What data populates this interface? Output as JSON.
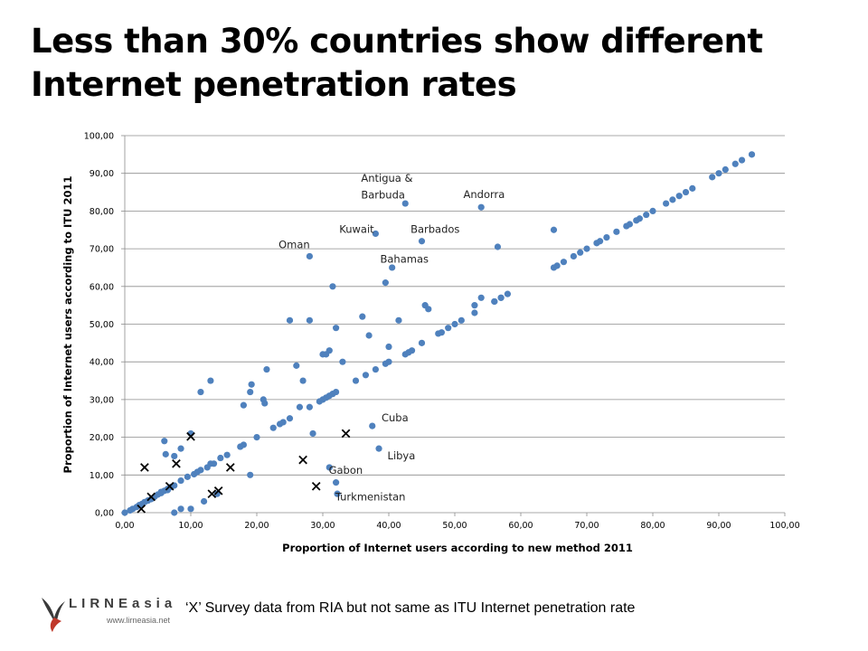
{
  "slide": {
    "title_line1": "Less than 30% countries show different",
    "title_line2": "Internet penetration rates",
    "footnote": "‘X’ Survey data from RIA but not same as ITU Internet penetration rate",
    "logo_word": "LIRNEasia",
    "logo_url": "www.lirneasia.net"
  },
  "colors": {
    "dot": "#4f81bd",
    "marker": "#000000",
    "grid": "#8c8c8c",
    "axis_text": "#000000"
  },
  "chart_data": {
    "type": "scatter",
    "title": "",
    "xlabel": "Proportion of Internet users according to new method 2011",
    "ylabel": "Proportion of Internet users according to ITU 2011",
    "xlim": [
      0,
      100
    ],
    "ylim": [
      0,
      100
    ],
    "x_ticks": [
      "0,00",
      "10,00",
      "20,00",
      "30,00",
      "40,00",
      "50,00",
      "60,00",
      "70,00",
      "80,00",
      "90,00",
      "100,00"
    ],
    "y_ticks": [
      "0,00",
      "10,00",
      "20,00",
      "30,00",
      "40,00",
      "50,00",
      "60,00",
      "70,00",
      "80,00",
      "90,00",
      "100,00"
    ],
    "grid": "horizontal",
    "series": [
      {
        "marker": "dot",
        "points": [
          [
            0,
            0
          ],
          [
            0.8,
            0.6
          ],
          [
            1.2,
            1
          ],
          [
            1.8,
            1.5
          ],
          [
            2.2,
            2
          ],
          [
            2.6,
            2.3
          ],
          [
            3,
            2.8
          ],
          [
            3.5,
            3.2
          ],
          [
            4,
            3.6
          ],
          [
            4.5,
            4.2
          ],
          [
            5,
            4.8
          ],
          [
            5.5,
            5.2
          ],
          [
            6,
            5.8
          ],
          [
            6.5,
            6.3
          ],
          [
            7,
            6.8
          ],
          [
            7.5,
            7.2
          ],
          [
            8.5,
            8.5
          ],
          [
            9.5,
            9.5
          ],
          [
            10.5,
            10.2
          ],
          [
            11,
            10.8
          ],
          [
            11.5,
            11.3
          ],
          [
            12.5,
            12
          ],
          [
            13,
            13
          ],
          [
            14.5,
            14.5
          ],
          [
            15.5,
            15.3
          ],
          [
            17.5,
            17.5
          ],
          [
            18,
            18
          ],
          [
            20,
            20
          ],
          [
            22.5,
            22.5
          ],
          [
            23.5,
            23.5
          ],
          [
            24,
            24
          ],
          [
            25,
            25
          ],
          [
            29.5,
            29.5
          ],
          [
            30,
            30
          ],
          [
            30.5,
            30.5
          ],
          [
            31,
            31
          ],
          [
            31.5,
            31.5
          ],
          [
            32,
            32
          ],
          [
            35,
            35
          ],
          [
            36.5,
            36.5
          ],
          [
            38,
            38
          ],
          [
            39.5,
            39.5
          ],
          [
            40,
            40
          ],
          [
            42.5,
            42
          ],
          [
            43,
            42.5
          ],
          [
            43.5,
            43
          ],
          [
            45,
            45
          ],
          [
            47.5,
            47.5
          ],
          [
            48,
            47.8
          ],
          [
            49,
            49
          ],
          [
            50,
            50
          ],
          [
            51,
            51
          ],
          [
            53,
            53
          ],
          [
            56,
            56
          ],
          [
            57,
            57
          ],
          [
            58,
            58
          ],
          [
            65,
            65
          ],
          [
            66.5,
            66.5
          ],
          [
            68,
            68
          ],
          [
            69,
            69
          ],
          [
            70,
            70
          ],
          [
            71.5,
            71.5
          ],
          [
            72,
            72
          ],
          [
            73,
            73
          ],
          [
            74.5,
            74.5
          ],
          [
            76,
            76
          ],
          [
            76.5,
            76.5
          ],
          [
            77.5,
            77.5
          ],
          [
            78,
            78
          ],
          [
            79,
            79
          ],
          [
            80,
            80
          ],
          [
            82,
            82
          ],
          [
            83,
            83
          ],
          [
            84,
            84
          ],
          [
            85,
            85
          ],
          [
            86,
            86
          ],
          [
            89,
            89
          ],
          [
            90,
            90
          ],
          [
            91,
            91
          ],
          [
            92.5,
            92.5
          ],
          [
            93.5,
            93.5
          ],
          [
            95,
            95
          ],
          [
            6,
            19
          ],
          [
            6.2,
            15.5
          ],
          [
            7.5,
            15
          ],
          [
            8.5,
            17
          ],
          [
            10,
            21
          ],
          [
            11.5,
            32
          ],
          [
            13,
            35
          ],
          [
            13.5,
            13
          ],
          [
            18,
            28.5
          ],
          [
            19,
            32
          ],
          [
            19.2,
            34
          ],
          [
            21,
            30
          ],
          [
            21.2,
            29
          ],
          [
            21.5,
            38
          ],
          [
            19,
            10
          ],
          [
            25,
            51
          ],
          [
            26,
            39
          ],
          [
            26.5,
            28
          ],
          [
            27,
            35
          ],
          [
            28,
            28
          ],
          [
            28.5,
            21
          ],
          [
            28,
            51
          ],
          [
            30,
            42
          ],
          [
            30.5,
            42
          ],
          [
            31,
            43
          ],
          [
            31.5,
            60
          ],
          [
            32,
            49
          ],
          [
            33,
            40
          ],
          [
            36,
            52
          ],
          [
            37,
            47
          ],
          [
            40,
            44
          ],
          [
            41.5,
            51
          ],
          [
            45.5,
            55
          ],
          [
            46,
            54
          ],
          [
            53,
            55
          ],
          [
            54,
            57
          ],
          [
            56,
            56
          ],
          [
            57,
            57
          ],
          [
            65,
            75
          ],
          [
            65.5,
            65.5
          ],
          [
            39.5,
            61
          ],
          [
            40.5,
            65
          ],
          [
            31,
            12
          ],
          [
            7.5,
            0
          ],
          [
            8.5,
            1
          ],
          [
            10,
            1
          ],
          [
            12,
            3
          ],
          [
            14,
            5
          ],
          [
            6.5,
            6
          ],
          [
            5.5,
            5.5
          ],
          [
            28,
            68
          ],
          [
            38,
            74
          ],
          [
            42.5,
            82
          ],
          [
            45,
            72
          ],
          [
            54,
            81
          ],
          [
            56.5,
            70.5
          ],
          [
            37.5,
            23
          ],
          [
            38.5,
            17
          ],
          [
            32,
            8
          ],
          [
            32.2,
            5
          ]
        ]
      },
      {
        "marker": "x",
        "points": [
          [
            3,
            12
          ],
          [
            7.8,
            13
          ],
          [
            10,
            20.2
          ],
          [
            16,
            12
          ],
          [
            27,
            14
          ],
          [
            33.5,
            21
          ],
          [
            29,
            7
          ],
          [
            4,
            4.2
          ],
          [
            6.8,
            7
          ],
          [
            13.2,
            5
          ],
          [
            14.2,
            5.8
          ],
          [
            2.5,
            1
          ]
        ]
      }
    ],
    "annotations": [
      {
        "text": "Antigua &",
        "x": 35.8,
        "y": 87.8
      },
      {
        "text": "Barbuda",
        "x": 35.8,
        "y": 83.3
      },
      {
        "text": "Andorra",
        "x": 51.3,
        "y": 83.5
      },
      {
        "text": "Kuwait",
        "x": 32.5,
        "y": 74.2
      },
      {
        "text": "Barbados",
        "x": 43.3,
        "y": 74.2
      },
      {
        "text": "Oman",
        "x": 23.3,
        "y": 70.2
      },
      {
        "text": "Bahamas",
        "x": 38.7,
        "y": 66.3
      },
      {
        "text": "Cuba",
        "x": 38.9,
        "y": 24.2
      },
      {
        "text": "Libya",
        "x": 39.8,
        "y": 14.2
      },
      {
        "text": "Gabon",
        "x": 30.9,
        "y": 10.3
      },
      {
        "text": "Turkmenistan",
        "x": 31.9,
        "y": 3.2
      }
    ]
  }
}
